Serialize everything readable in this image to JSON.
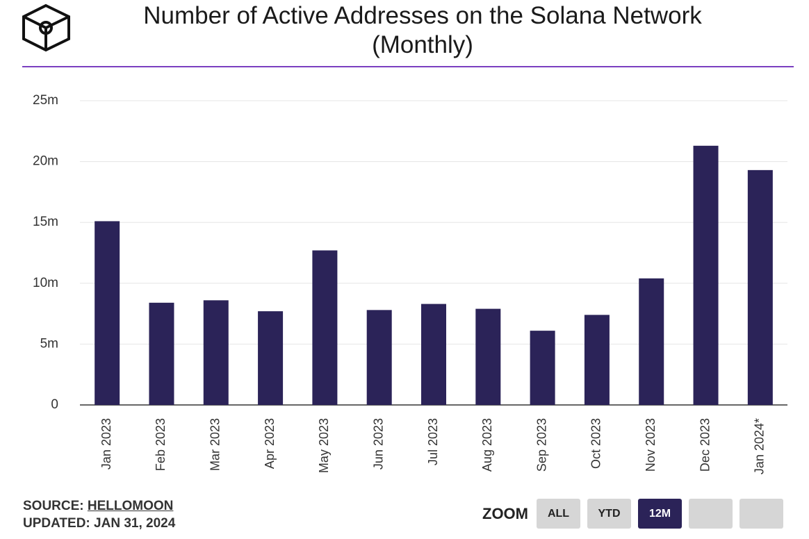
{
  "chart_data": {
    "type": "bar",
    "title": "Number of Active Addresses on the Solana Network (Monthly)",
    "categories": [
      "Jan 2023",
      "Feb 2023",
      "Mar 2023",
      "Apr 2023",
      "May 2023",
      "Jun 2023",
      "Jul 2023",
      "Aug 2023",
      "Sep 2023",
      "Oct 2023",
      "Nov 2023",
      "Dec 2023",
      "Jan 2024*"
    ],
    "values": [
      15100000,
      8400000,
      8600000,
      7700000,
      12700000,
      7800000,
      8300000,
      7900000,
      6100000,
      7400000,
      10400000,
      21300000,
      19300000
    ],
    "color": "#2b2358",
    "ylim": [
      0,
      25000000
    ],
    "yticks": [
      0,
      {
        "value": 5000000,
        "label": "5m"
      },
      {
        "value": 10000000,
        "label": "10m"
      },
      {
        "value": 15000000,
        "label": "15m"
      },
      {
        "value": 20000000,
        "label": "20m"
      },
      {
        "value": 25000000,
        "label": "25m"
      }
    ],
    "grid": true
  },
  "footer": {
    "source_label": "SOURCE:",
    "source": "HELLOMOON",
    "updated": "UPDATED: JAN 31, 2024"
  },
  "zoom": {
    "label": "ZOOM",
    "buttons": [
      "ALL",
      "YTD",
      "12M"
    ],
    "active": 2
  }
}
